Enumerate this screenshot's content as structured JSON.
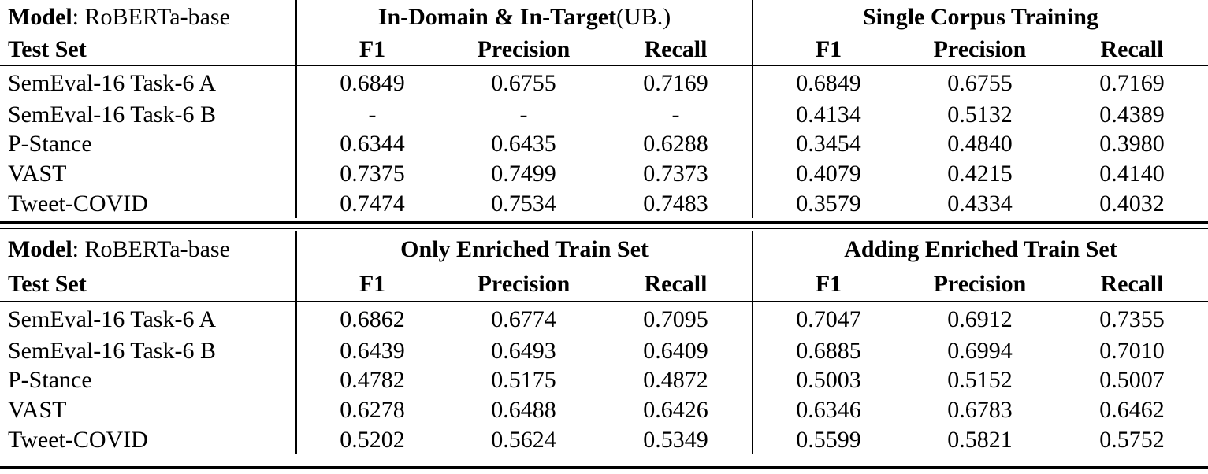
{
  "page": {
    "background": "#ffffff",
    "text_color": "#000000",
    "rule_color": "#000000"
  },
  "tables": [
    {
      "header": {
        "model_label": "Model",
        "model_value": ": RoBERTa-base",
        "test_set_label": "Test Set",
        "groups": [
          {
            "title": "In-Domain & In-Target",
            "suffix": " (UB.)",
            "columns": [
              "F1",
              "Precision",
              "Recall"
            ]
          },
          {
            "title": "Single Corpus Training",
            "suffix": "",
            "columns": [
              "F1",
              "Precision",
              "Recall"
            ]
          }
        ]
      },
      "rows": [
        {
          "label": "SemEval-16 Task-6 A",
          "values": [
            "0.6849",
            "0.6755",
            "0.7169",
            "0.6849",
            "0.6755",
            "0.7169"
          ]
        },
        {
          "label": "SemEval-16 Task-6 B",
          "values": [
            "-",
            "-",
            "-",
            "0.4134",
            "0.5132",
            "0.4389"
          ]
        },
        {
          "label": "P-Stance",
          "values": [
            "0.6344",
            "0.6435",
            "0.6288",
            "0.3454",
            "0.4840",
            "0.3980"
          ]
        },
        {
          "label": "VAST",
          "values": [
            "0.7375",
            "0.7499",
            "0.7373",
            "0.4079",
            "0.4215",
            "0.4140"
          ]
        },
        {
          "label": "Tweet-COVID",
          "values": [
            "0.7474",
            "0.7534",
            "0.7483",
            "0.3579",
            "0.4334",
            "0.4032"
          ]
        }
      ]
    },
    {
      "header": {
        "model_label": "Model",
        "model_value": ": RoBERTa-base",
        "test_set_label": "Test Set",
        "groups": [
          {
            "title": "Only Enriched Train Set",
            "suffix": "",
            "columns": [
              "F1",
              "Precision",
              "Recall"
            ]
          },
          {
            "title": "Adding Enriched Train Set",
            "suffix": "",
            "columns": [
              "F1",
              "Precision",
              "Recall"
            ]
          }
        ]
      },
      "rows": [
        {
          "label": "SemEval-16 Task-6 A",
          "values": [
            "0.6862",
            "0.6774",
            "0.7095",
            "0.7047",
            "0.6912",
            "0.7355"
          ]
        },
        {
          "label": "SemEval-16 Task-6 B",
          "values": [
            "0.6439",
            "0.6493",
            "0.6409",
            "0.6885",
            "0.6994",
            "0.7010"
          ]
        },
        {
          "label": "P-Stance",
          "values": [
            "0.4782",
            "0.5175",
            "0.4872",
            "0.5003",
            "0.5152",
            "0.5007"
          ]
        },
        {
          "label": "VAST",
          "values": [
            "0.6278",
            "0.6488",
            "0.6426",
            "0.6346",
            "0.6783",
            "0.6462"
          ]
        },
        {
          "label": "Tweet-COVID",
          "values": [
            "0.5202",
            "0.5624",
            "0.5349",
            "0.5599",
            "0.5821",
            "0.5752"
          ]
        }
      ]
    }
  ]
}
